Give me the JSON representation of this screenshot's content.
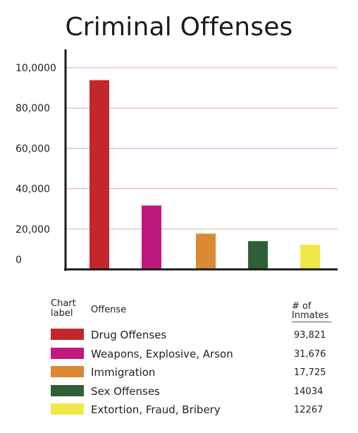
{
  "chart_data": {
    "type": "bar",
    "title": "Criminal Offenses",
    "categories": [
      "Drug Offenses",
      "Weapons, Explosive, Arson",
      "Immigration",
      "Sex Offenses",
      "Extortion, Fraud, Bribery"
    ],
    "values": [
      93821,
      31676,
      17725,
      14034,
      12267
    ],
    "colors": [
      "#c1272d",
      "#c0187e",
      "#dc8834",
      "#2f5f37",
      "#f0e84a"
    ],
    "y_ticks": [
      {
        "value": 0,
        "label": "0"
      },
      {
        "value": 20000,
        "label": "20,000"
      },
      {
        "value": 40000,
        "label": "40,000"
      },
      {
        "value": 60000,
        "label": "60,000"
      },
      {
        "value": 80000,
        "label": "80,000"
      },
      {
        "value": 100000,
        "label": "10,0000"
      }
    ],
    "ylim": [
      0,
      100000
    ],
    "grid": true,
    "grid_color": "#e2a8a0",
    "xlabel": "",
    "ylabel": ""
  },
  "legend": {
    "header_chart": "Chart label",
    "header_offense": "Offense",
    "header_inmates": "# of Inmates",
    "rows": [
      {
        "label": "Drug Offenses",
        "count": "93,821"
      },
      {
        "label": "Weapons, Explosive, Arson",
        "count": "31,676"
      },
      {
        "label": "Immigration",
        "count": "17,725"
      },
      {
        "label": "Sex Offenses",
        "count": "14034"
      },
      {
        "label": "Extortion, Fraud, Bribery",
        "count": "12267"
      }
    ]
  }
}
